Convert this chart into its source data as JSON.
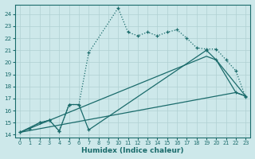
{
  "xlabel": "Humidex (Indice chaleur)",
  "background_color": "#cde8ea",
  "grid_color": "#b0d0d3",
  "line_color": "#1a6b6b",
  "xlim": [
    -0.5,
    23.5
  ],
  "ylim": [
    13.8,
    24.8
  ],
  "xticks": [
    0,
    1,
    2,
    3,
    4,
    5,
    6,
    7,
    8,
    9,
    10,
    11,
    12,
    13,
    14,
    15,
    16,
    17,
    18,
    19,
    20,
    21,
    22,
    23
  ],
  "yticks": [
    14,
    15,
    16,
    17,
    18,
    19,
    20,
    21,
    22,
    23,
    24
  ],
  "line1_x": [
    0,
    1,
    2,
    3,
    4,
    5,
    6,
    7,
    10,
    11,
    12,
    13,
    14,
    15,
    16,
    17,
    18,
    19,
    20,
    21,
    22,
    23
  ],
  "line1_y": [
    14.2,
    14.5,
    15.0,
    15.2,
    14.3,
    16.5,
    16.5,
    20.8,
    24.5,
    22.5,
    22.2,
    22.5,
    22.2,
    22.5,
    22.7,
    22.0,
    21.2,
    21.1,
    21.1,
    20.2,
    19.3,
    17.1
  ],
  "line2_x": [
    0,
    2,
    3,
    4,
    5,
    6,
    7,
    19,
    20,
    22,
    23
  ],
  "line2_y": [
    14.2,
    15.0,
    15.2,
    14.3,
    16.5,
    16.5,
    14.4,
    21.0,
    20.2,
    17.5,
    17.2
  ],
  "line3_x": [
    0,
    19,
    20,
    23
  ],
  "line3_y": [
    14.2,
    20.5,
    20.2,
    17.2
  ],
  "line4_x": [
    0,
    22,
    23
  ],
  "line4_y": [
    14.2,
    17.5,
    17.2
  ]
}
